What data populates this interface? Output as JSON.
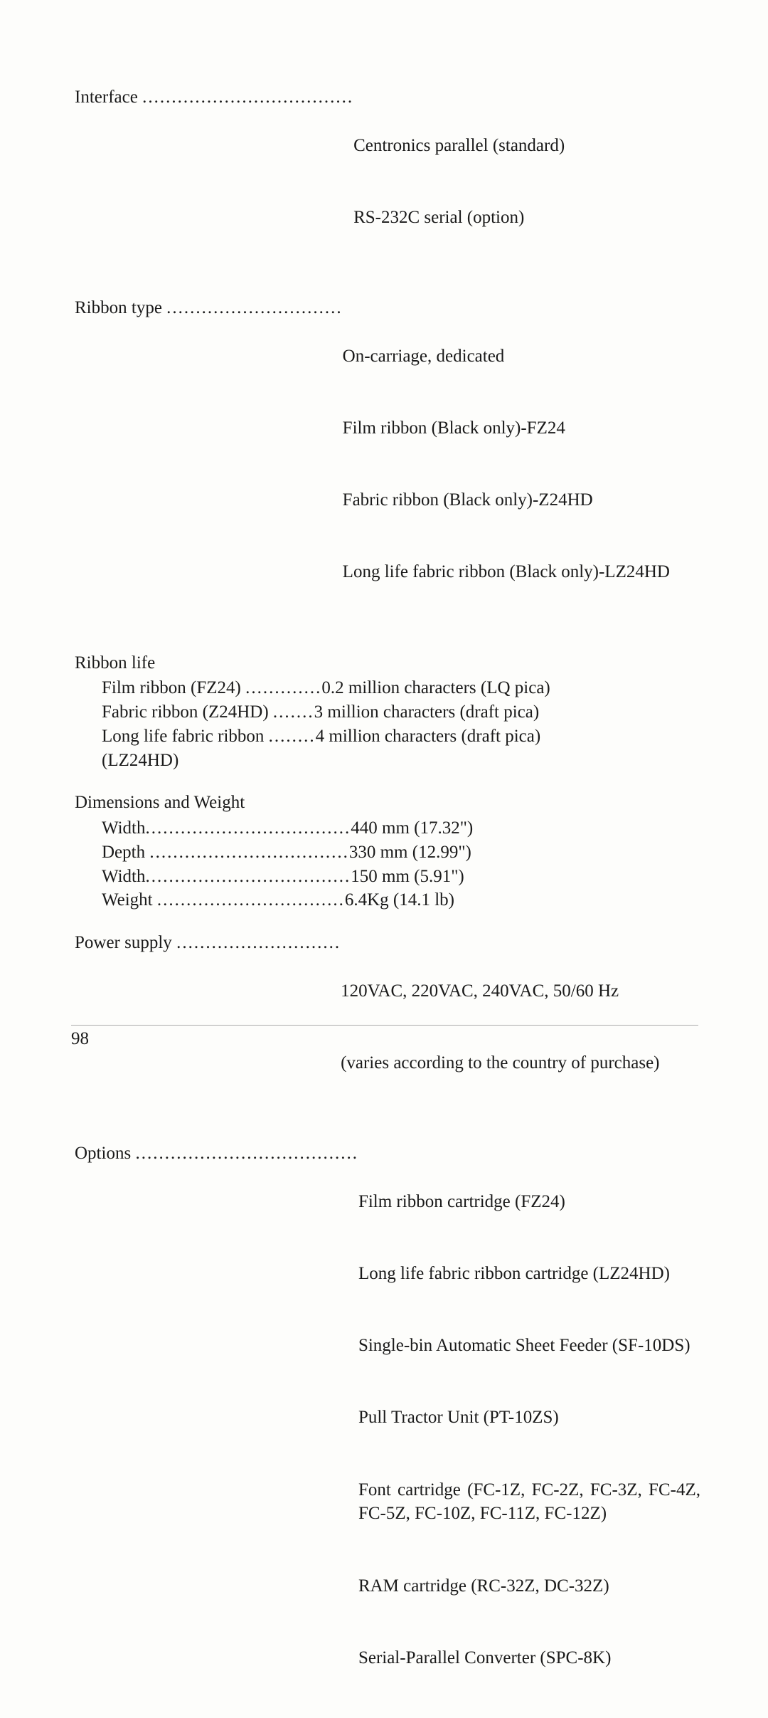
{
  "interface": {
    "label": "Interface ",
    "dots": "....................................",
    "values": [
      "Centronics parallel (standard)",
      "RS-232C serial (option)"
    ]
  },
  "ribbonType": {
    "label": "Ribbon type ",
    "dots": "..............................",
    "values": [
      "On-carriage, dedicated",
      "Film ribbon (Black only)-FZ24",
      "Fabric ribbon (Black only)-Z24HD",
      "Long life fabric ribbon (Black only)-LZ24HD"
    ]
  },
  "ribbonLife": {
    "title": "Ribbon life",
    "items": [
      {
        "label": "Film ribbon (FZ24) ",
        "dots": ".............",
        "value": "0.2 million characters (LQ pica)"
      },
      {
        "label": "Fabric ribbon (Z24HD) ",
        "dots": ".......",
        "value": "3 million characters (draft pica)"
      },
      {
        "label": "Long life fabric ribbon ",
        "dots": "........",
        "value": "4 million characters (draft pica)"
      },
      {
        "label": "(LZ24HD)",
        "dots": "",
        "value": ""
      }
    ]
  },
  "dimensions": {
    "title": "Dimensions and Weight",
    "items": [
      {
        "label": "Width",
        "dots": "...................................",
        "value": "440 mm (17.32\")"
      },
      {
        "label": "Depth ",
        "dots": "..................................",
        "value": "330 mm (12.99\")"
      },
      {
        "label": "Width",
        "dots": "...................................",
        "value": "150 mm (5.91\")"
      },
      {
        "label": "Weight ",
        "dots": "................................",
        "value": "6.4Kg (14.1 lb)"
      }
    ]
  },
  "powerSupply": {
    "label": "Power supply ",
    "dots": "............................",
    "values": [
      "120VAC, 220VAC, 240VAC, 50/60 Hz",
      "(varies according to the country of purchase)"
    ]
  },
  "options": {
    "label": "Options ",
    "dots": "......................................",
    "values": [
      "Film ribbon cartridge (FZ24)",
      "Long life fabric ribbon cartridge (LZ24HD)",
      "Single-bin Automatic Sheet Feeder (SF-10DS)",
      "Pull Tractor Unit (PT-10ZS)",
      "Font cartridge (FC-1Z, FC-2Z, FC-3Z, FC-4Z, FC-5Z, FC-10Z, FC-11Z, FC-12Z)",
      "RAM cartridge (RC-32Z, DC-32Z)",
      "Serial-Parallel Converter (SPC-8K)"
    ]
  },
  "pageNumber": "98"
}
